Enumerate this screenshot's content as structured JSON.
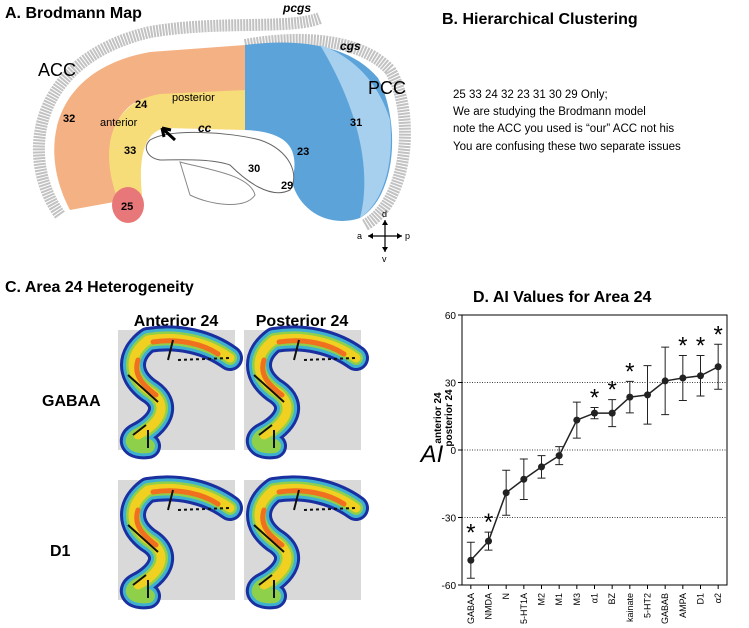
{
  "panels": {
    "a": {
      "title": "A. Brodmann Map",
      "labels": {
        "pcgs": "pcgs",
        "cgs": "cgs",
        "acc": "ACC",
        "pcc": "PCC",
        "area32": "32",
        "area24": "24",
        "posterior": "posterior",
        "anterior": "anterior",
        "cc": "cc",
        "area33": "33",
        "area25": "25",
        "area30": "30",
        "area29": "29",
        "area23": "23",
        "area31": "31",
        "d": "d",
        "a": "a",
        "p": "p",
        "v": "v"
      }
    },
    "b": {
      "title": "B. Hierarchical Clustering",
      "lines": [
        "25 33  24  32  23  31 30 29  Only;",
        "We are studying the Brodmann model",
        "note the ACC you used is “our” ACC not his",
        "You are confusing these two separate issues"
      ]
    },
    "c": {
      "title": "C. Area 24 Heterogeneity",
      "columns": [
        "Anterior 24",
        "Posterior 24"
      ],
      "rows": [
        "GABAA",
        "D1"
      ]
    }
  },
  "chart_data": {
    "type": "line",
    "title": "D. AI Values for Area 24",
    "ylabel": "AI",
    "ylabel_numerator": "anterior 24",
    "ylabel_denominator": "posterior 24",
    "categories": [
      "GABAA",
      "NMDA",
      "N",
      "5-HT1A",
      "M2",
      "M1",
      "M3",
      "α1",
      "BZ",
      "kainate",
      "5-HT2",
      "GABAB",
      "AMPA",
      "D1",
      "α2"
    ],
    "values": [
      -49,
      -40.5,
      -19,
      -13,
      -7.5,
      -2.5,
      13.3,
      16.4,
      16.4,
      23.5,
      24.5,
      30.7,
      32,
      33,
      37
    ],
    "errors": [
      8,
      4,
      10,
      9,
      5,
      4,
      8,
      2.5,
      6,
      7,
      13,
      15,
      10,
      9,
      10
    ],
    "significance": [
      "*",
      "*",
      null,
      null,
      null,
      null,
      null,
      "*",
      "*",
      "*",
      null,
      null,
      "*",
      "*",
      "*"
    ],
    "color": "#222222",
    "ylim": [
      -60,
      60
    ],
    "yticks": [
      -60,
      -30,
      0,
      30,
      60
    ],
    "grid": true
  }
}
